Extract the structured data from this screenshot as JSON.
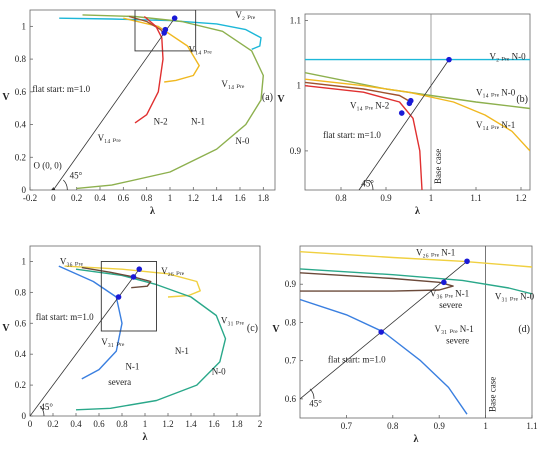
{
  "figure": {
    "background": "#ffffff"
  },
  "chart_data": [
    {
      "id": "a",
      "type": "line",
      "panel_label": "(a)",
      "xlabel": "λ",
      "ylabel": "V",
      "xlim": [
        -0.2,
        1.9
      ],
      "ylim": [
        0,
        1.1
      ],
      "xticks": [
        -0.2,
        0,
        0.2,
        0.4,
        0.6,
        0.8,
        1,
        1.2,
        1.4,
        1.6,
        1.8
      ],
      "yticks": [
        0,
        0.2,
        0.4,
        0.6,
        0.8,
        1
      ],
      "series": [
        {
          "color": "#1db7d8",
          "points": [
            [
              0.05,
              1.05
            ],
            [
              0.5,
              1.045
            ],
            [
              1.0,
              1.035
            ],
            [
              1.4,
              1.015
            ],
            [
              1.65,
              0.98
            ],
            [
              1.78,
              0.93
            ],
            [
              1.77,
              0.88
            ],
            [
              1.7,
              0.86
            ]
          ]
        },
        {
          "color": "#8db04e",
          "points": [
            [
              0.25,
              1.07
            ],
            [
              0.7,
              1.06
            ],
            [
              1.1,
              1.03
            ],
            [
              1.45,
              0.97
            ],
            [
              1.7,
              0.85
            ],
            [
              1.8,
              0.7
            ],
            [
              1.78,
              0.55
            ],
            [
              1.65,
              0.4
            ],
            [
              1.4,
              0.25
            ],
            [
              1.0,
              0.11
            ],
            [
              0.5,
              0.03
            ],
            [
              0.2,
              0.01
            ]
          ]
        },
        {
          "color": "#f0b820",
          "points": [
            [
              0.6,
              1.05
            ],
            [
              0.9,
              1.0
            ],
            [
              1.15,
              0.88
            ],
            [
              1.25,
              0.76
            ],
            [
              1.2,
              0.7
            ],
            [
              1.05,
              0.67
            ],
            [
              0.95,
              0.66
            ]
          ]
        },
        {
          "color": "#a0522d",
          "points": [
            [
              0.65,
              1.06
            ],
            [
              0.8,
              1.03
            ],
            [
              0.92,
              0.98
            ],
            [
              0.95,
              0.95
            ]
          ]
        },
        {
          "color": "#e03030",
          "points": [
            [
              0.78,
              1.06
            ],
            [
              0.88,
              1.0
            ],
            [
              0.93,
              0.93
            ],
            [
              0.94,
              0.8
            ],
            [
              0.9,
              0.6
            ],
            [
              0.8,
              0.46
            ],
            [
              0.7,
              0.41
            ]
          ]
        }
      ],
      "flat_start": {
        "origin": [
          0,
          0
        ],
        "points": [
          [
            0.0,
            0.0
          ],
          [
            1.04,
            1.05
          ]
        ]
      },
      "markers": [
        [
          1.04,
          1.05
        ],
        [
          0.96,
          0.98
        ],
        [
          0.95,
          0.96
        ]
      ],
      "marker_color": "#1a1ad6",
      "zoom_box": {
        "x": [
          0.7,
          1.22
        ],
        "y": [
          0.85,
          1.1
        ]
      },
      "annotations": [
        {
          "text": "V₂ ₚᵣₑ",
          "at": [
            1.56,
            1.05
          ]
        },
        {
          "text": "V₁₄ ₚᵣₑ",
          "at": [
            1.16,
            0.84
          ]
        },
        {
          "text": "V₁₄ ₚᵣₑ",
          "at": [
            1.44,
            0.63
          ]
        },
        {
          "text": "V₁₄ ₚᵣₑ",
          "at": [
            0.38,
            0.3
          ]
        },
        {
          "text": "flat start: m=1.0",
          "at": [
            -0.18,
            0.6
          ]
        },
        {
          "text": "N-2",
          "at": [
            0.86,
            0.4
          ]
        },
        {
          "text": "N-1",
          "at": [
            1.18,
            0.4
          ]
        },
        {
          "text": "N-0",
          "at": [
            1.56,
            0.28
          ]
        },
        {
          "text": "O (0, 0)",
          "at": [
            -0.17,
            0.13
          ]
        },
        {
          "text": "45°",
          "at": [
            0.14,
            0.07
          ]
        }
      ]
    },
    {
      "id": "b",
      "type": "line",
      "panel_label": "(b)",
      "xlabel": "λ",
      "ylabel": "V",
      "xlim": [
        0.72,
        1.22
      ],
      "ylim": [
        0.84,
        1.11
      ],
      "xticks": [
        0.8,
        0.9,
        1,
        1.1,
        1.2
      ],
      "yticks": [
        0.9,
        1,
        1.1
      ],
      "series": [
        {
          "color": "#1db7d8",
          "points": [
            [
              0.72,
              1.04
            ],
            [
              1.0,
              1.04
            ],
            [
              1.22,
              1.04
            ]
          ]
        },
        {
          "color": "#8db04e",
          "points": [
            [
              0.72,
              1.02
            ],
            [
              0.9,
              0.995
            ],
            [
              1.0,
              0.985
            ],
            [
              1.1,
              0.975
            ],
            [
              1.22,
              0.965
            ]
          ]
        },
        {
          "color": "#f0b820",
          "points": [
            [
              0.72,
              1.01
            ],
            [
              0.85,
              1.0
            ],
            [
              0.95,
              0.99
            ],
            [
              1.05,
              0.975
            ],
            [
              1.12,
              0.955
            ],
            [
              1.18,
              0.93
            ],
            [
              1.22,
              0.9
            ]
          ]
        },
        {
          "color": "#a0522d",
          "points": [
            [
              0.72,
              1.005
            ],
            [
              0.85,
              0.995
            ],
            [
              0.93,
              0.985
            ],
            [
              0.955,
              0.975
            ]
          ]
        },
        {
          "color": "#e03030",
          "points": [
            [
              0.72,
              1.0
            ],
            [
              0.85,
              0.99
            ],
            [
              0.93,
              0.975
            ],
            [
              0.96,
              0.95
            ],
            [
              0.975,
              0.9
            ],
            [
              0.98,
              0.84
            ]
          ]
        }
      ],
      "flat_start": {
        "points": [
          [
            0.84,
            0.84
          ],
          [
            1.04,
            1.04
          ]
        ]
      },
      "markers": [
        [
          1.04,
          1.04
        ],
        [
          0.955,
          0.977
        ],
        [
          0.952,
          0.973
        ],
        [
          0.935,
          0.958
        ]
      ],
      "marker_color": "#1a1ad6",
      "vline": {
        "x": 1.0,
        "label": "Base case",
        "color": "#888888"
      },
      "annotations": [
        {
          "text": "V₂ ₚᵣₑ N-0",
          "at": [
            1.13,
            1.04
          ]
        },
        {
          "text": "V₁₄ ₚᵣₑ N-0",
          "at": [
            1.1,
            0.985
          ]
        },
        {
          "text": "V₁₄ ₚᵣₑ N-2",
          "at": [
            0.82,
            0.965
          ]
        },
        {
          "text": "V₁₄ ₚᵣₑ N-1",
          "at": [
            1.1,
            0.935
          ]
        },
        {
          "text": "flat start: m=1.0",
          "at": [
            0.76,
            0.92
          ]
        },
        {
          "text": "45°",
          "at": [
            0.845,
            0.845
          ]
        }
      ]
    },
    {
      "id": "c",
      "type": "line",
      "panel_label": "(c)",
      "xlabel": "λ",
      "ylabel": "V",
      "xlim": [
        0,
        2
      ],
      "ylim": [
        0,
        1.1
      ],
      "xticks": [
        0,
        0.2,
        0.4,
        0.6,
        0.8,
        1,
        1.2,
        1.4,
        1.6,
        1.8,
        2
      ],
      "yticks": [
        0,
        0.2,
        0.4,
        0.6,
        0.8,
        1
      ],
      "series": [
        {
          "color": "#f0d040",
          "points": [
            [
              0.3,
              0.97
            ],
            [
              0.8,
              0.95
            ],
            [
              1.2,
              0.92
            ],
            [
              1.45,
              0.87
            ],
            [
              1.48,
              0.81
            ],
            [
              1.38,
              0.78
            ],
            [
              1.2,
              0.77
            ]
          ]
        },
        {
          "color": "#2aa88a",
          "points": [
            [
              0.4,
              0.95
            ],
            [
              0.8,
              0.91
            ],
            [
              1.1,
              0.85
            ],
            [
              1.4,
              0.77
            ],
            [
              1.62,
              0.65
            ],
            [
              1.7,
              0.5
            ],
            [
              1.65,
              0.35
            ],
            [
              1.45,
              0.2
            ],
            [
              1.1,
              0.1
            ],
            [
              0.7,
              0.05
            ],
            [
              0.4,
              0.04
            ]
          ]
        },
        {
          "color": "#6b4a3a",
          "points": [
            [
              0.45,
              0.96
            ],
            [
              0.7,
              0.93
            ],
            [
              0.9,
              0.9
            ],
            [
              1.05,
              0.87
            ],
            [
              1.02,
              0.84
            ],
            [
              0.88,
              0.83
            ]
          ]
        },
        {
          "color": "#3a7fe0",
          "points": [
            [
              0.25,
              0.97
            ],
            [
              0.55,
              0.87
            ],
            [
              0.75,
              0.77
            ],
            [
              0.8,
              0.6
            ],
            [
              0.75,
              0.42
            ],
            [
              0.6,
              0.3
            ],
            [
              0.45,
              0.24
            ]
          ]
        }
      ],
      "flat_start": {
        "points": [
          [
            0.0,
            0.0
          ],
          [
            0.95,
            0.95
          ]
        ]
      },
      "markers": [
        [
          0.95,
          0.95
        ],
        [
          0.9,
          0.9
        ],
        [
          0.77,
          0.77
        ]
      ],
      "marker_color": "#1a1ad6",
      "zoom_box": {
        "x": [
          0.62,
          1.1
        ],
        "y": [
          0.55,
          1.0
        ]
      },
      "annotations": [
        {
          "text": "V₃₆ ₚᵣₑ",
          "at": [
            0.26,
            0.98
          ]
        },
        {
          "text": "V₂₆ ₚᵣₑ",
          "at": [
            1.14,
            0.92
          ]
        },
        {
          "text": "V₃₁ ₚᵣₑ",
          "at": [
            1.66,
            0.6
          ]
        },
        {
          "text": "V₃₁ ₚᵣₑ",
          "at": [
            0.62,
            0.46
          ]
        },
        {
          "text": "flat start: m=1.0",
          "at": [
            0.05,
            0.62
          ]
        },
        {
          "text": "N-1",
          "at": [
            0.83,
            0.3
          ]
        },
        {
          "text": "N-1",
          "at": [
            1.26,
            0.4
          ]
        },
        {
          "text": "N-0",
          "at": [
            1.58,
            0.27
          ]
        },
        {
          "text": "severa",
          "at": [
            0.68,
            0.2
          ]
        },
        {
          "text": "45°",
          "at": [
            0.09,
            0.04
          ]
        }
      ]
    },
    {
      "id": "d",
      "type": "line",
      "panel_label": "(d)",
      "xlabel": "λ",
      "ylabel": "V",
      "xlim": [
        0.6,
        1.1
      ],
      "ylim": [
        0.55,
        1.0
      ],
      "xticks": [
        0.7,
        0.8,
        0.9,
        1,
        1.1
      ],
      "yticks": [
        0.6,
        0.7,
        0.8,
        0.9
      ],
      "series": [
        {
          "color": "#f0d040",
          "points": [
            [
              0.6,
              0.985
            ],
            [
              0.8,
              0.97
            ],
            [
              0.95,
              0.96
            ],
            [
              1.05,
              0.95
            ],
            [
              1.1,
              0.945
            ]
          ]
        },
        {
          "color": "#2aa88a",
          "points": [
            [
              0.6,
              0.94
            ],
            [
              0.8,
              0.925
            ],
            [
              0.95,
              0.91
            ],
            [
              1.05,
              0.89
            ],
            [
              1.1,
              0.875
            ]
          ]
        },
        {
          "color": "#6b4a3a",
          "points": [
            [
              0.6,
              0.93
            ],
            [
              0.8,
              0.915
            ],
            [
              0.9,
              0.905
            ],
            [
              0.93,
              0.895
            ],
            [
              0.9,
              0.885
            ],
            [
              0.8,
              0.882
            ],
            [
              0.6,
              0.882
            ]
          ]
        },
        {
          "color": "#3a7fe0",
          "points": [
            [
              0.6,
              0.86
            ],
            [
              0.7,
              0.82
            ],
            [
              0.78,
              0.775
            ],
            [
              0.86,
              0.7
            ],
            [
              0.92,
              0.63
            ],
            [
              0.96,
              0.56
            ]
          ]
        }
      ],
      "flat_start": {
        "points": [
          [
            0.6,
            0.6
          ],
          [
            0.96,
            0.96
          ]
        ]
      },
      "markers": [
        [
          0.96,
          0.96
        ],
        [
          0.91,
          0.905
        ],
        [
          0.775,
          0.775
        ]
      ],
      "marker_color": "#1a1ad6",
      "vline": {
        "x": 1.0,
        "label": "Base case",
        "color": "#555555"
      },
      "annotations": [
        {
          "text": "V₂₆ ₚᵣₑ N-1",
          "at": [
            0.85,
            0.975
          ]
        },
        {
          "text": "V₃₆ ₚᵣₑ N-1",
          "at": [
            0.88,
            0.868
          ]
        },
        {
          "text": "severe",
          "at": [
            0.9,
            0.838
          ]
        },
        {
          "text": "V₃₁ ₚᵣₑ N-0",
          "at": [
            1.02,
            0.86
          ]
        },
        {
          "text": "V₃₁ ₚᵣₑ N-1",
          "at": [
            0.89,
            0.775
          ]
        },
        {
          "text": "severe",
          "at": [
            0.915,
            0.745
          ]
        },
        {
          "text": "flat start: m=1.0",
          "at": [
            0.66,
            0.695
          ]
        },
        {
          "text": "45°",
          "at": [
            0.62,
            0.58
          ]
        }
      ]
    }
  ]
}
